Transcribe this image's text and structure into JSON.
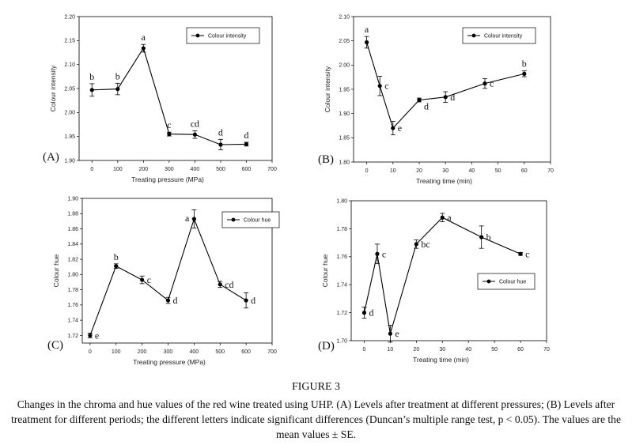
{
  "figure": {
    "number": "FIGURE 3",
    "caption": "Changes in the chroma and hue values of the red wine treated using UHP. (A) Levels after treatment at different pressures; (B) Levels after treatment for different periods; the different letters indicate significant differences (Duncan’s multiple range test, p < 0.05). The values are the mean values ± SE."
  },
  "colors": {
    "line": "#000000",
    "text": "#222222"
  },
  "chart_data": [
    {
      "id": "A",
      "panel_label": "(A)",
      "type": "line",
      "title": "",
      "xlabel": "Treating pressure (MPa)",
      "ylabel": "Colour intensity",
      "legend": "Colour intensity",
      "legend_position": "top-right",
      "xlim": [
        -50,
        700
      ],
      "ylim": [
        1.9,
        2.2
      ],
      "xticks": [
        0,
        100,
        200,
        300,
        400,
        500,
        600,
        700
      ],
      "yticks": [
        1.9,
        1.95,
        2.0,
        2.05,
        2.1,
        2.15,
        2.2
      ],
      "ytick_decimals": 2,
      "x": [
        0,
        100,
        200,
        300,
        400,
        500,
        600
      ],
      "y": [
        2.047,
        2.049,
        2.134,
        1.955,
        1.954,
        1.933,
        1.934
      ],
      "err": [
        0.013,
        0.012,
        0.008,
        0.004,
        0.008,
        0.011,
        0.004
      ],
      "letters": [
        "b",
        "b",
        "a",
        "c",
        "cd",
        "d",
        "d"
      ],
      "letter_pos": [
        "above",
        "above",
        "above",
        "above",
        "above",
        "above",
        "above"
      ]
    },
    {
      "id": "B",
      "panel_label": "(B)",
      "type": "line",
      "title": "",
      "xlabel": "Treating time (min)",
      "ylabel": "Colour intensity",
      "legend": "Colour intensity",
      "legend_position": "top-right",
      "xlim": [
        -5,
        70
      ],
      "ylim": [
        1.8,
        2.1
      ],
      "xticks": [
        0,
        10,
        20,
        30,
        40,
        50,
        60,
        70
      ],
      "yticks": [
        1.8,
        1.85,
        1.9,
        1.95,
        2.0,
        2.05,
        2.1
      ],
      "ytick_decimals": 2,
      "x": [
        0,
        5,
        10,
        20,
        30,
        45,
        60
      ],
      "y": [
        2.047,
        1.957,
        1.87,
        1.928,
        1.934,
        1.962,
        1.982
      ],
      "err": [
        0.012,
        0.02,
        0.014,
        0.004,
        0.011,
        0.01,
        0.006
      ],
      "letters": [
        "a",
        "c",
        "e",
        "d",
        "d",
        "c",
        "b"
      ],
      "letter_pos": [
        "above",
        "right",
        "right",
        "below-right",
        "right",
        "right",
        "above"
      ]
    },
    {
      "id": "C",
      "panel_label": "(C)",
      "type": "line",
      "title": "",
      "xlabel": "Treating pressure (MPa)",
      "ylabel": "Colour hue",
      "legend": "Colour hue",
      "legend_position": "top-right",
      "xlim": [
        -30,
        700
      ],
      "ylim": [
        1.71,
        1.9
      ],
      "xticks": [
        0,
        100,
        200,
        300,
        400,
        500,
        600,
        700
      ],
      "yticks": [
        1.72,
        1.74,
        1.76,
        1.78,
        1.8,
        1.82,
        1.84,
        1.86,
        1.88,
        1.9
      ],
      "ytick_decimals": 2,
      "x": [
        0,
        100,
        200,
        300,
        400,
        500,
        600
      ],
      "y": [
        1.72,
        1.811,
        1.793,
        1.766,
        1.873,
        1.787,
        1.766
      ],
      "err": [
        0.003,
        0.003,
        0.005,
        0.004,
        0.012,
        0.004,
        0.01
      ],
      "letters": [
        "e",
        "b",
        "c",
        "d",
        "a",
        "cd",
        "d"
      ],
      "letter_pos": [
        "right",
        "above",
        "right",
        "right",
        "left",
        "right",
        "right"
      ]
    },
    {
      "id": "D",
      "panel_label": "(D)",
      "type": "line",
      "title": "",
      "xlabel": "Treating time (min)",
      "ylabel": "Colour hue",
      "legend": "Colour hue",
      "legend_position": "middle-right",
      "xlim": [
        -5,
        70
      ],
      "ylim": [
        1.7,
        1.8
      ],
      "xticks": [
        0,
        10,
        20,
        30,
        40,
        50,
        60,
        70
      ],
      "yticks": [
        1.7,
        1.72,
        1.74,
        1.76,
        1.78,
        1.8
      ],
      "ytick_decimals": 2,
      "x": [
        0,
        5,
        10,
        20,
        30,
        45,
        60
      ],
      "y": [
        1.72,
        1.762,
        1.705,
        1.769,
        1.788,
        1.774,
        1.762
      ],
      "err": [
        0.004,
        0.007,
        0.006,
        0.003,
        0.003,
        0.008,
        0.001
      ],
      "letters": [
        "d",
        "c",
        "e",
        "bc",
        "a",
        "b",
        "c"
      ],
      "letter_pos": [
        "right",
        "right",
        "right",
        "right",
        "right",
        "right",
        "right"
      ]
    }
  ]
}
